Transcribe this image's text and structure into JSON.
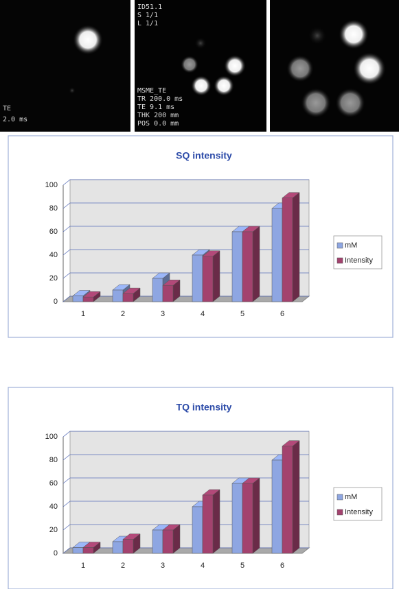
{
  "images": {
    "left_overlay": [
      "TE",
      "2.0 ms"
    ],
    "middle_overlay_top": [
      "ID51.1",
      "S 1/1",
      "L 1/1"
    ],
    "middle_overlay_bottom": [
      "MSME_TE",
      "TR 200.0 ms",
      "TE 9.1 ms",
      "THK 200 mm",
      "POS 0.0 mm"
    ]
  },
  "chart_data": [
    {
      "type": "bar",
      "title": "SQ intensity",
      "categories": [
        "1",
        "2",
        "3",
        "4",
        "5",
        "6"
      ],
      "series": [
        {
          "name": "mM",
          "color": "#8ea6e2",
          "values": [
            5,
            10,
            20,
            40,
            60,
            80
          ]
        },
        {
          "name": "Intensity",
          "color": "#a3426e",
          "values": [
            4,
            7,
            14,
            39,
            60,
            89
          ]
        }
      ],
      "ylim": [
        0,
        100
      ],
      "yticks": [
        0,
        20,
        40,
        60,
        80,
        100
      ],
      "grid": true,
      "legend": "right"
    },
    {
      "type": "bar",
      "title": "TQ intensity",
      "categories": [
        "1",
        "2",
        "3",
        "4",
        "5",
        "6"
      ],
      "series": [
        {
          "name": "mM",
          "color": "#8ea6e2",
          "values": [
            5,
            10,
            20,
            40,
            60,
            80
          ]
        },
        {
          "name": "Intensity",
          "color": "#a3426e",
          "values": [
            5,
            12,
            20,
            50,
            60,
            92
          ]
        }
      ],
      "ylim": [
        0,
        100
      ],
      "yticks": [
        0,
        20,
        40,
        60,
        80,
        100
      ],
      "grid": true,
      "legend": "right"
    }
  ]
}
